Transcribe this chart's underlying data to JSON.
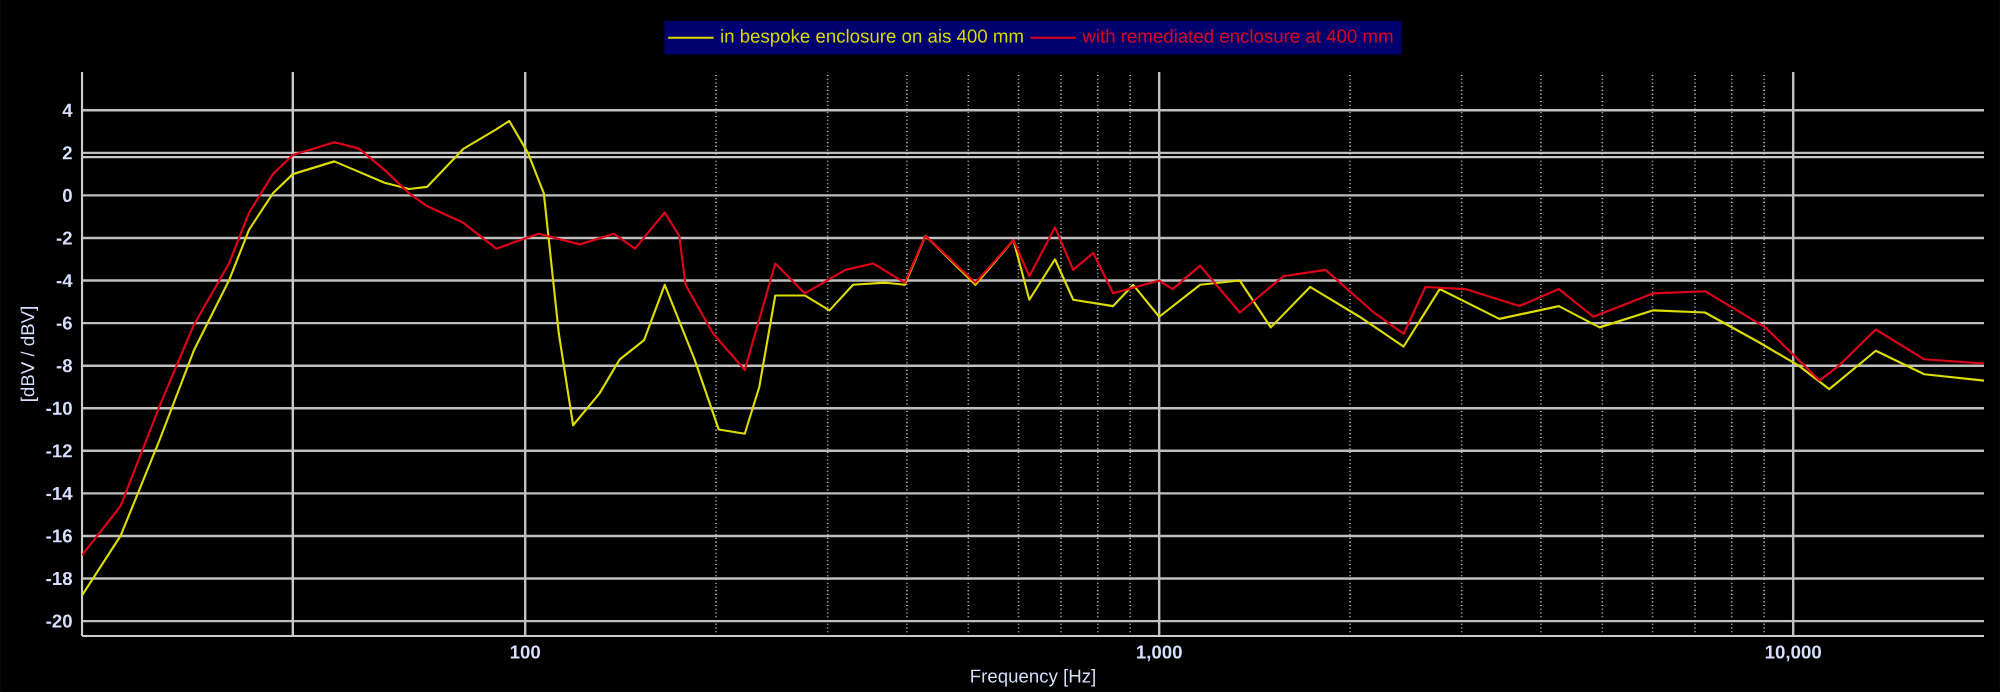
{
  "chart_data": {
    "type": "line",
    "xlabel": "Frequency [Hz]",
    "ylabel": "[dBV / dBV]",
    "log": "x",
    "grid": true,
    "legend": "top",
    "xlim": [
      20,
      20000
    ],
    "ylim": [
      -20.7,
      5.8
    ],
    "xticks": [
      100,
      {
        "value": 1000,
        "label": "1,000"
      },
      {
        "value": 10000,
        "label": "10,000"
      }
    ],
    "yticks": [
      -20,
      -18,
      -16,
      -14,
      -12,
      -10,
      -8,
      -6,
      -4,
      -2,
      0,
      2,
      4
    ],
    "ref_lines": [
      {
        "axis": "y",
        "value": 1.8,
        "color": "#c8c8c8"
      },
      {
        "axis": "x",
        "value": 43,
        "color": "#c8c8c8"
      }
    ],
    "series": [
      {
        "name": "in bespoke enclosure on ais 400 mm",
        "color": "#dcdc00",
        "x": [
          20,
          23,
          26.5,
          30,
          34.1,
          36.7,
          40,
          43,
          50,
          60,
          65.6,
          70,
          80,
          90,
          94.4,
          101,
          107,
          113,
          119,
          131,
          141,
          154,
          166,
          185,
          202,
          222,
          234,
          248,
          276,
          302,
          329,
          370,
          397,
          428,
          513,
          589,
          624,
          685,
          732,
          846,
          910,
          1000,
          1160,
          1340,
          1500,
          1730,
          2070,
          2430,
          2770,
          3440,
          4270,
          4950,
          6020,
          7260,
          8830,
          10200,
          11400,
          13500,
          16100,
          20000
        ],
        "values": [
          -18.8,
          -16.0,
          -11.5,
          -7.3,
          -4.0,
          -1.6,
          0.1,
          1.0,
          1.6,
          0.6,
          0.3,
          0.4,
          2.2,
          3.1,
          3.5,
          2.0,
          0.1,
          -6.5,
          -10.8,
          -9.3,
          -7.7,
          -6.8,
          -4.2,
          -7.7,
          -11.0,
          -11.2,
          -9.0,
          -4.7,
          -4.7,
          -5.4,
          -4.2,
          -4.1,
          -4.2,
          -1.9,
          -4.2,
          -2.1,
          -4.9,
          -3.0,
          -4.9,
          -5.2,
          -4.2,
          -5.7,
          -4.2,
          -4.0,
          -6.2,
          -4.3,
          -5.7,
          -7.1,
          -4.4,
          -5.8,
          -5.2,
          -6.2,
          -5.4,
          -5.5,
          -6.9,
          -8.0,
          -9.1,
          -7.3,
          -8.4,
          -8.7
        ]
      },
      {
        "name": "with remediated enclosure at 400 mm",
        "color": "#e0001a",
        "x": [
          20,
          23,
          26.5,
          30,
          34.1,
          36.7,
          40,
          43,
          50,
          54.7,
          60,
          65.6,
          70,
          80,
          90,
          105,
          122,
          138,
          149,
          166,
          175,
          179,
          198,
          222,
          248,
          276,
          320,
          354,
          397,
          428,
          513,
          589,
          624,
          685,
          732,
          787,
          846,
          1000,
          1050,
          1160,
          1340,
          1570,
          1830,
          2180,
          2430,
          2630,
          3040,
          3700,
          4270,
          4840,
          6020,
          7260,
          9040,
          11000,
          11800,
          13500,
          16100,
          20000
        ],
        "values": [
          -16.9,
          -14.6,
          -9.9,
          -6.1,
          -3.2,
          -0.8,
          1.0,
          1.9,
          2.5,
          2.2,
          1.2,
          0.1,
          -0.5,
          -1.3,
          -2.5,
          -1.8,
          -2.3,
          -1.8,
          -2.5,
          -0.8,
          -1.9,
          -4.2,
          -6.5,
          -8.2,
          -3.2,
          -4.6,
          -3.5,
          -3.2,
          -4.1,
          -1.9,
          -4.1,
          -2.1,
          -3.8,
          -1.5,
          -3.5,
          -2.7,
          -4.6,
          -4.0,
          -4.4,
          -3.3,
          -5.5,
          -3.8,
          -3.5,
          -5.5,
          -6.5,
          -4.3,
          -4.4,
          -5.2,
          -4.4,
          -5.7,
          -4.6,
          -4.5,
          -6.2,
          -8.7,
          -8.0,
          -6.3,
          -7.7,
          -7.9
        ]
      }
    ]
  }
}
